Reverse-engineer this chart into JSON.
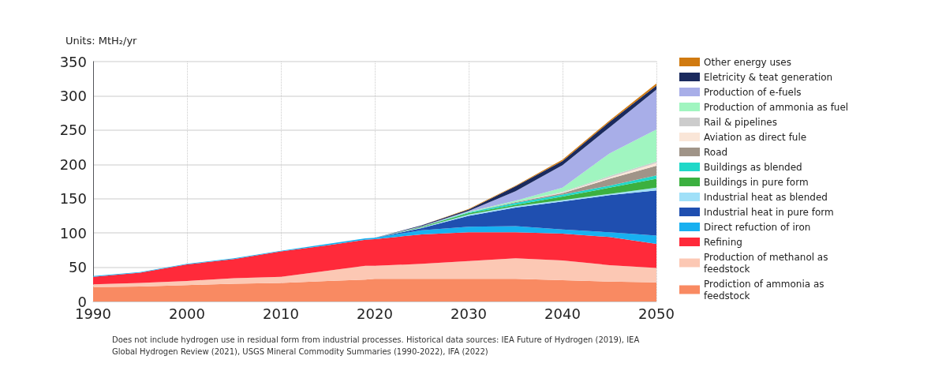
{
  "chart_data": {
    "type": "area",
    "stacked": true,
    "ylabel": "Units: MtH₂/yr",
    "x": [
      1990,
      1995,
      2000,
      2005,
      2010,
      2015,
      2019,
      2020,
      2025,
      2030,
      2035,
      2040,
      2045,
      2050
    ],
    "xlim": [
      1990,
      2050
    ],
    "xticks": [
      1990,
      2000,
      2010,
      2020,
      2030,
      2040,
      2050
    ],
    "ylim": [
      0,
      350
    ],
    "yticks": [
      0,
      50,
      100,
      150,
      200,
      250,
      300,
      350
    ],
    "grid": true,
    "legend": "right",
    "annotations": [
      "Does not include hydrogen use in residual form from industrial processes. Historical data sources: IEA Future of Hydrogen (2019), IEA Global Hydrogen Review (2021), USGS Mineral Commodity Summaries (1990-2022), IFA (2022)"
    ],
    "series": [
      {
        "name": "Prodiction of ammonia as feedstock",
        "color": "#f98a62",
        "values": [
          21,
          22,
          24,
          26,
          27,
          30,
          32,
          33,
          33,
          33,
          33,
          31,
          29,
          28
        ]
      },
      {
        "name": "Production of methanol as feedstock",
        "color": "#fcc8b4",
        "values": [
          4,
          5,
          6,
          8,
          9,
          15,
          20,
          19,
          22,
          26,
          30,
          29,
          24,
          21
        ]
      },
      {
        "name": "Refining",
        "color": "#ff2a3a",
        "values": [
          11,
          15,
          24,
          28,
          37,
          37,
          38,
          39,
          43,
          42,
          38,
          39,
          41,
          35
        ]
      },
      {
        "name": "Direct refuction of iron",
        "color": "#18b0f0",
        "values": [
          1,
          1,
          1,
          1,
          1,
          2,
          2,
          2,
          6,
          8,
          9,
          6,
          7,
          12
        ]
      },
      {
        "name": "Industrial heat in pure form",
        "color": "#1f4fb0",
        "values": [
          0,
          0,
          0,
          0,
          0,
          0,
          0,
          0,
          3,
          16,
          27,
          41,
          54,
          66
        ]
      },
      {
        "name": "Industrial heat as blended",
        "color": "#a0e0f8",
        "values": [
          0,
          0,
          0,
          0,
          0,
          0,
          0,
          0,
          1,
          2,
          2,
          2,
          2,
          4
        ]
      },
      {
        "name": "Buildings in pure form",
        "color": "#3cb040",
        "values": [
          0,
          0,
          0,
          0,
          0,
          0,
          0,
          0,
          1,
          2,
          2,
          5,
          9,
          13
        ]
      },
      {
        "name": "Buildings as blended",
        "color": "#20d8c8",
        "values": [
          0,
          0,
          0,
          0,
          0,
          0,
          0,
          0,
          0,
          1,
          3,
          3,
          3,
          5
        ]
      },
      {
        "name": "Road",
        "color": "#a09488",
        "values": [
          0,
          0,
          0,
          0,
          0,
          0,
          0,
          0,
          0,
          0,
          1,
          2,
          10,
          14
        ]
      },
      {
        "name": "Aviation as direct fule",
        "color": "#fae6d8",
        "values": [
          0,
          0,
          0,
          0,
          0,
          0,
          0,
          0,
          0,
          0,
          0,
          1,
          2,
          4
        ]
      },
      {
        "name": "Rail & pipelines",
        "color": "#cccccc",
        "values": [
          0,
          0,
          0,
          0,
          0,
          0,
          0,
          0,
          0,
          0,
          0,
          1,
          2,
          2
        ]
      },
      {
        "name": "Production of ammonia as fuel",
        "color": "#a0f5c0",
        "values": [
          0,
          0,
          0,
          0,
          0,
          0,
          0,
          0,
          0,
          1,
          2,
          6,
          33,
          47
        ]
      },
      {
        "name": "Production of e-fuels",
        "color": "#a8aee8",
        "values": [
          0,
          0,
          0,
          0,
          0,
          0,
          0,
          0,
          1,
          1,
          14,
          33,
          38,
          58
        ]
      },
      {
        "name": "Eletricity & teat generation",
        "color": "#1a2a5e",
        "values": [
          0,
          0,
          0,
          0,
          0,
          0,
          0,
          0,
          1,
          2,
          7,
          6,
          8,
          6
        ]
      },
      {
        "name": "Other energy uses",
        "color": "#d07a10",
        "values": [
          0,
          0,
          0,
          0,
          0,
          0,
          0,
          0,
          0,
          1,
          1,
          2,
          2,
          3
        ]
      }
    ]
  }
}
